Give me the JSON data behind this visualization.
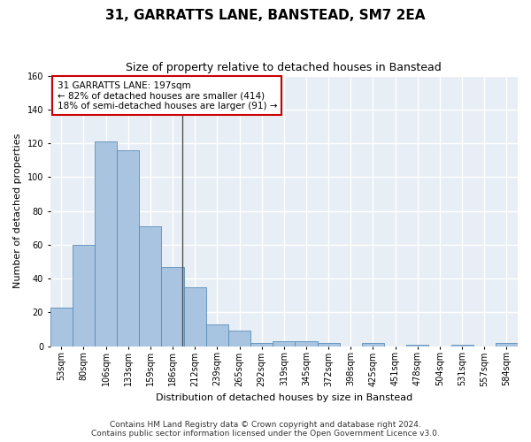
{
  "title": "31, GARRATTS LANE, BANSTEAD, SM7 2EA",
  "subtitle": "Size of property relative to detached houses in Banstead",
  "xlabel": "Distribution of detached houses by size in Banstead",
  "ylabel": "Number of detached properties",
  "categories": [
    "53sqm",
    "80sqm",
    "106sqm",
    "133sqm",
    "159sqm",
    "186sqm",
    "212sqm",
    "239sqm",
    "265sqm",
    "292sqm",
    "319sqm",
    "345sqm",
    "372sqm",
    "398sqm",
    "425sqm",
    "451sqm",
    "478sqm",
    "504sqm",
    "531sqm",
    "557sqm",
    "584sqm"
  ],
  "values": [
    23,
    60,
    121,
    116,
    71,
    47,
    35,
    13,
    9,
    2,
    3,
    3,
    2,
    0,
    2,
    0,
    1,
    0,
    1,
    0,
    2
  ],
  "bar_color": "#a8c4e0",
  "bar_edge_color": "#5b8db8",
  "annotation_line1": "31 GARRATTS LANE: 197sqm",
  "annotation_line2": "← 82% of detached houses are smaller (414)",
  "annotation_line3": "18% of semi-detached houses are larger (91) →",
  "annotation_box_color": "#cc0000",
  "ylim": [
    0,
    160
  ],
  "yticks": [
    0,
    20,
    40,
    60,
    80,
    100,
    120,
    140,
    160
  ],
  "background_color": "#e8eef5",
  "grid_color": "#ffffff",
  "footer_line1": "Contains HM Land Registry data © Crown copyright and database right 2024.",
  "footer_line2": "Contains public sector information licensed under the Open Government Licence v3.0.",
  "bar_width": 1.0,
  "title_fontsize": 11,
  "subtitle_fontsize": 9,
  "axis_label_fontsize": 8,
  "tick_fontsize": 7,
  "annotation_fontsize": 7.5,
  "footer_fontsize": 6.5,
  "fig_width": 6.0,
  "fig_height": 5.0,
  "dpi": 100
}
